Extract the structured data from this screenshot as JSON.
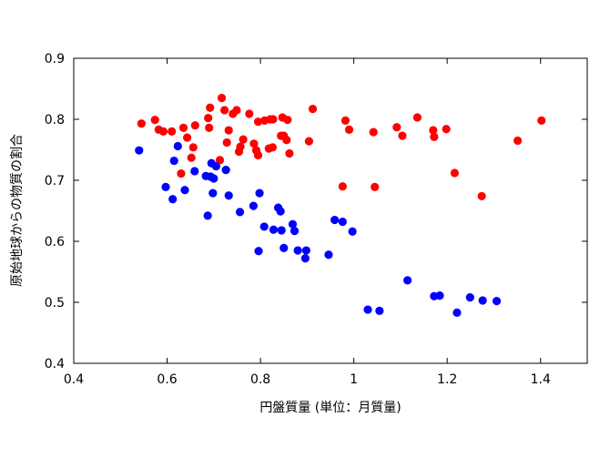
{
  "chart_data": {
    "type": "scatter",
    "xlabel": "円盤質量 (単位：月質量)",
    "ylabel": "原始地球からの物質の割合",
    "xlim": [
      0.4,
      1.5
    ],
    "ylim": [
      0.4,
      0.9
    ],
    "xticks": [
      "0.4",
      "0.6",
      "0.8",
      "1",
      "1.2",
      "1.4"
    ],
    "yticks": [
      "0.4",
      "0.5",
      "0.6",
      "0.7",
      "0.8",
      "0.9"
    ],
    "grid": false,
    "legend": "none",
    "series": [
      {
        "color": "#ff0000",
        "points": [
          [
            0.545,
            0.793
          ],
          [
            0.574,
            0.799
          ],
          [
            0.582,
            0.783
          ],
          [
            0.592,
            0.78
          ],
          [
            0.61,
            0.78
          ],
          [
            0.63,
            0.711
          ],
          [
            0.635,
            0.786
          ],
          [
            0.643,
            0.77
          ],
          [
            0.652,
            0.737
          ],
          [
            0.656,
            0.754
          ],
          [
            0.66,
            0.79
          ],
          [
            0.688,
            0.802
          ],
          [
            0.692,
            0.819
          ],
          [
            0.69,
            0.786
          ],
          [
            0.713,
            0.733
          ],
          [
            0.717,
            0.835
          ],
          [
            0.723,
            0.815
          ],
          [
            0.728,
            0.762
          ],
          [
            0.732,
            0.782
          ],
          [
            0.741,
            0.809
          ],
          [
            0.749,
            0.815
          ],
          [
            0.754,
            0.747
          ],
          [
            0.757,
            0.755
          ],
          [
            0.763,
            0.767
          ],
          [
            0.776,
            0.809
          ],
          [
            0.786,
            0.76
          ],
          [
            0.791,
            0.749
          ],
          [
            0.795,
            0.741
          ],
          [
            0.795,
            0.796
          ],
          [
            0.809,
            0.798
          ],
          [
            0.818,
            0.752
          ],
          [
            0.821,
            0.8
          ],
          [
            0.826,
            0.754
          ],
          [
            0.827,
            0.8
          ],
          [
            0.844,
            0.773
          ],
          [
            0.847,
            0.803
          ],
          [
            0.85,
            0.773
          ],
          [
            0.856,
            0.766
          ],
          [
            0.858,
            0.799
          ],
          [
            0.862,
            0.744
          ],
          [
            0.904,
            0.764
          ],
          [
            0.912,
            0.817
          ],
          [
            0.976,
            0.69
          ],
          [
            0.982,
            0.798
          ],
          [
            0.99,
            0.783
          ],
          [
            1.042,
            0.779
          ],
          [
            1.045,
            0.689
          ],
          [
            1.092,
            0.787
          ],
          [
            1.104,
            0.773
          ],
          [
            1.136,
            0.803
          ],
          [
            1.17,
            0.782
          ],
          [
            1.172,
            0.771
          ],
          [
            1.198,
            0.784
          ],
          [
            1.216,
            0.712
          ],
          [
            1.274,
            0.674
          ],
          [
            1.351,
            0.765
          ],
          [
            1.402,
            0.798
          ]
        ]
      },
      {
        "color": "#0000ff",
        "points": [
          [
            0.54,
            0.749
          ],
          [
            0.597,
            0.689
          ],
          [
            0.612,
            0.669
          ],
          [
            0.615,
            0.732
          ],
          [
            0.623,
            0.756
          ],
          [
            0.638,
            0.684
          ],
          [
            0.659,
            0.715
          ],
          [
            0.683,
            0.707
          ],
          [
            0.687,
            0.642
          ],
          [
            0.693,
            0.706
          ],
          [
            0.695,
            0.728
          ],
          [
            0.698,
            0.679
          ],
          [
            0.7,
            0.703
          ],
          [
            0.705,
            0.723
          ],
          [
            0.726,
            0.717
          ],
          [
            0.732,
            0.675
          ],
          [
            0.756,
            0.648
          ],
          [
            0.785,
            0.658
          ],
          [
            0.796,
            0.584
          ],
          [
            0.798,
            0.679
          ],
          [
            0.808,
            0.624
          ],
          [
            0.828,
            0.619
          ],
          [
            0.838,
            0.655
          ],
          [
            0.843,
            0.649
          ],
          [
            0.845,
            0.618
          ],
          [
            0.85,
            0.589
          ],
          [
            0.869,
            0.628
          ],
          [
            0.873,
            0.617
          ],
          [
            0.88,
            0.585
          ],
          [
            0.896,
            0.572
          ],
          [
            0.898,
            0.585
          ],
          [
            0.946,
            0.578
          ],
          [
            0.959,
            0.635
          ],
          [
            0.976,
            0.632
          ],
          [
            0.997,
            0.616
          ],
          [
            1.03,
            0.488
          ],
          [
            1.055,
            0.486
          ],
          [
            1.115,
            0.536
          ],
          [
            1.172,
            0.51
          ],
          [
            1.184,
            0.511
          ],
          [
            1.221,
            0.483
          ],
          [
            1.249,
            0.508
          ],
          [
            1.276,
            0.503
          ],
          [
            1.306,
            0.502
          ]
        ]
      }
    ]
  }
}
